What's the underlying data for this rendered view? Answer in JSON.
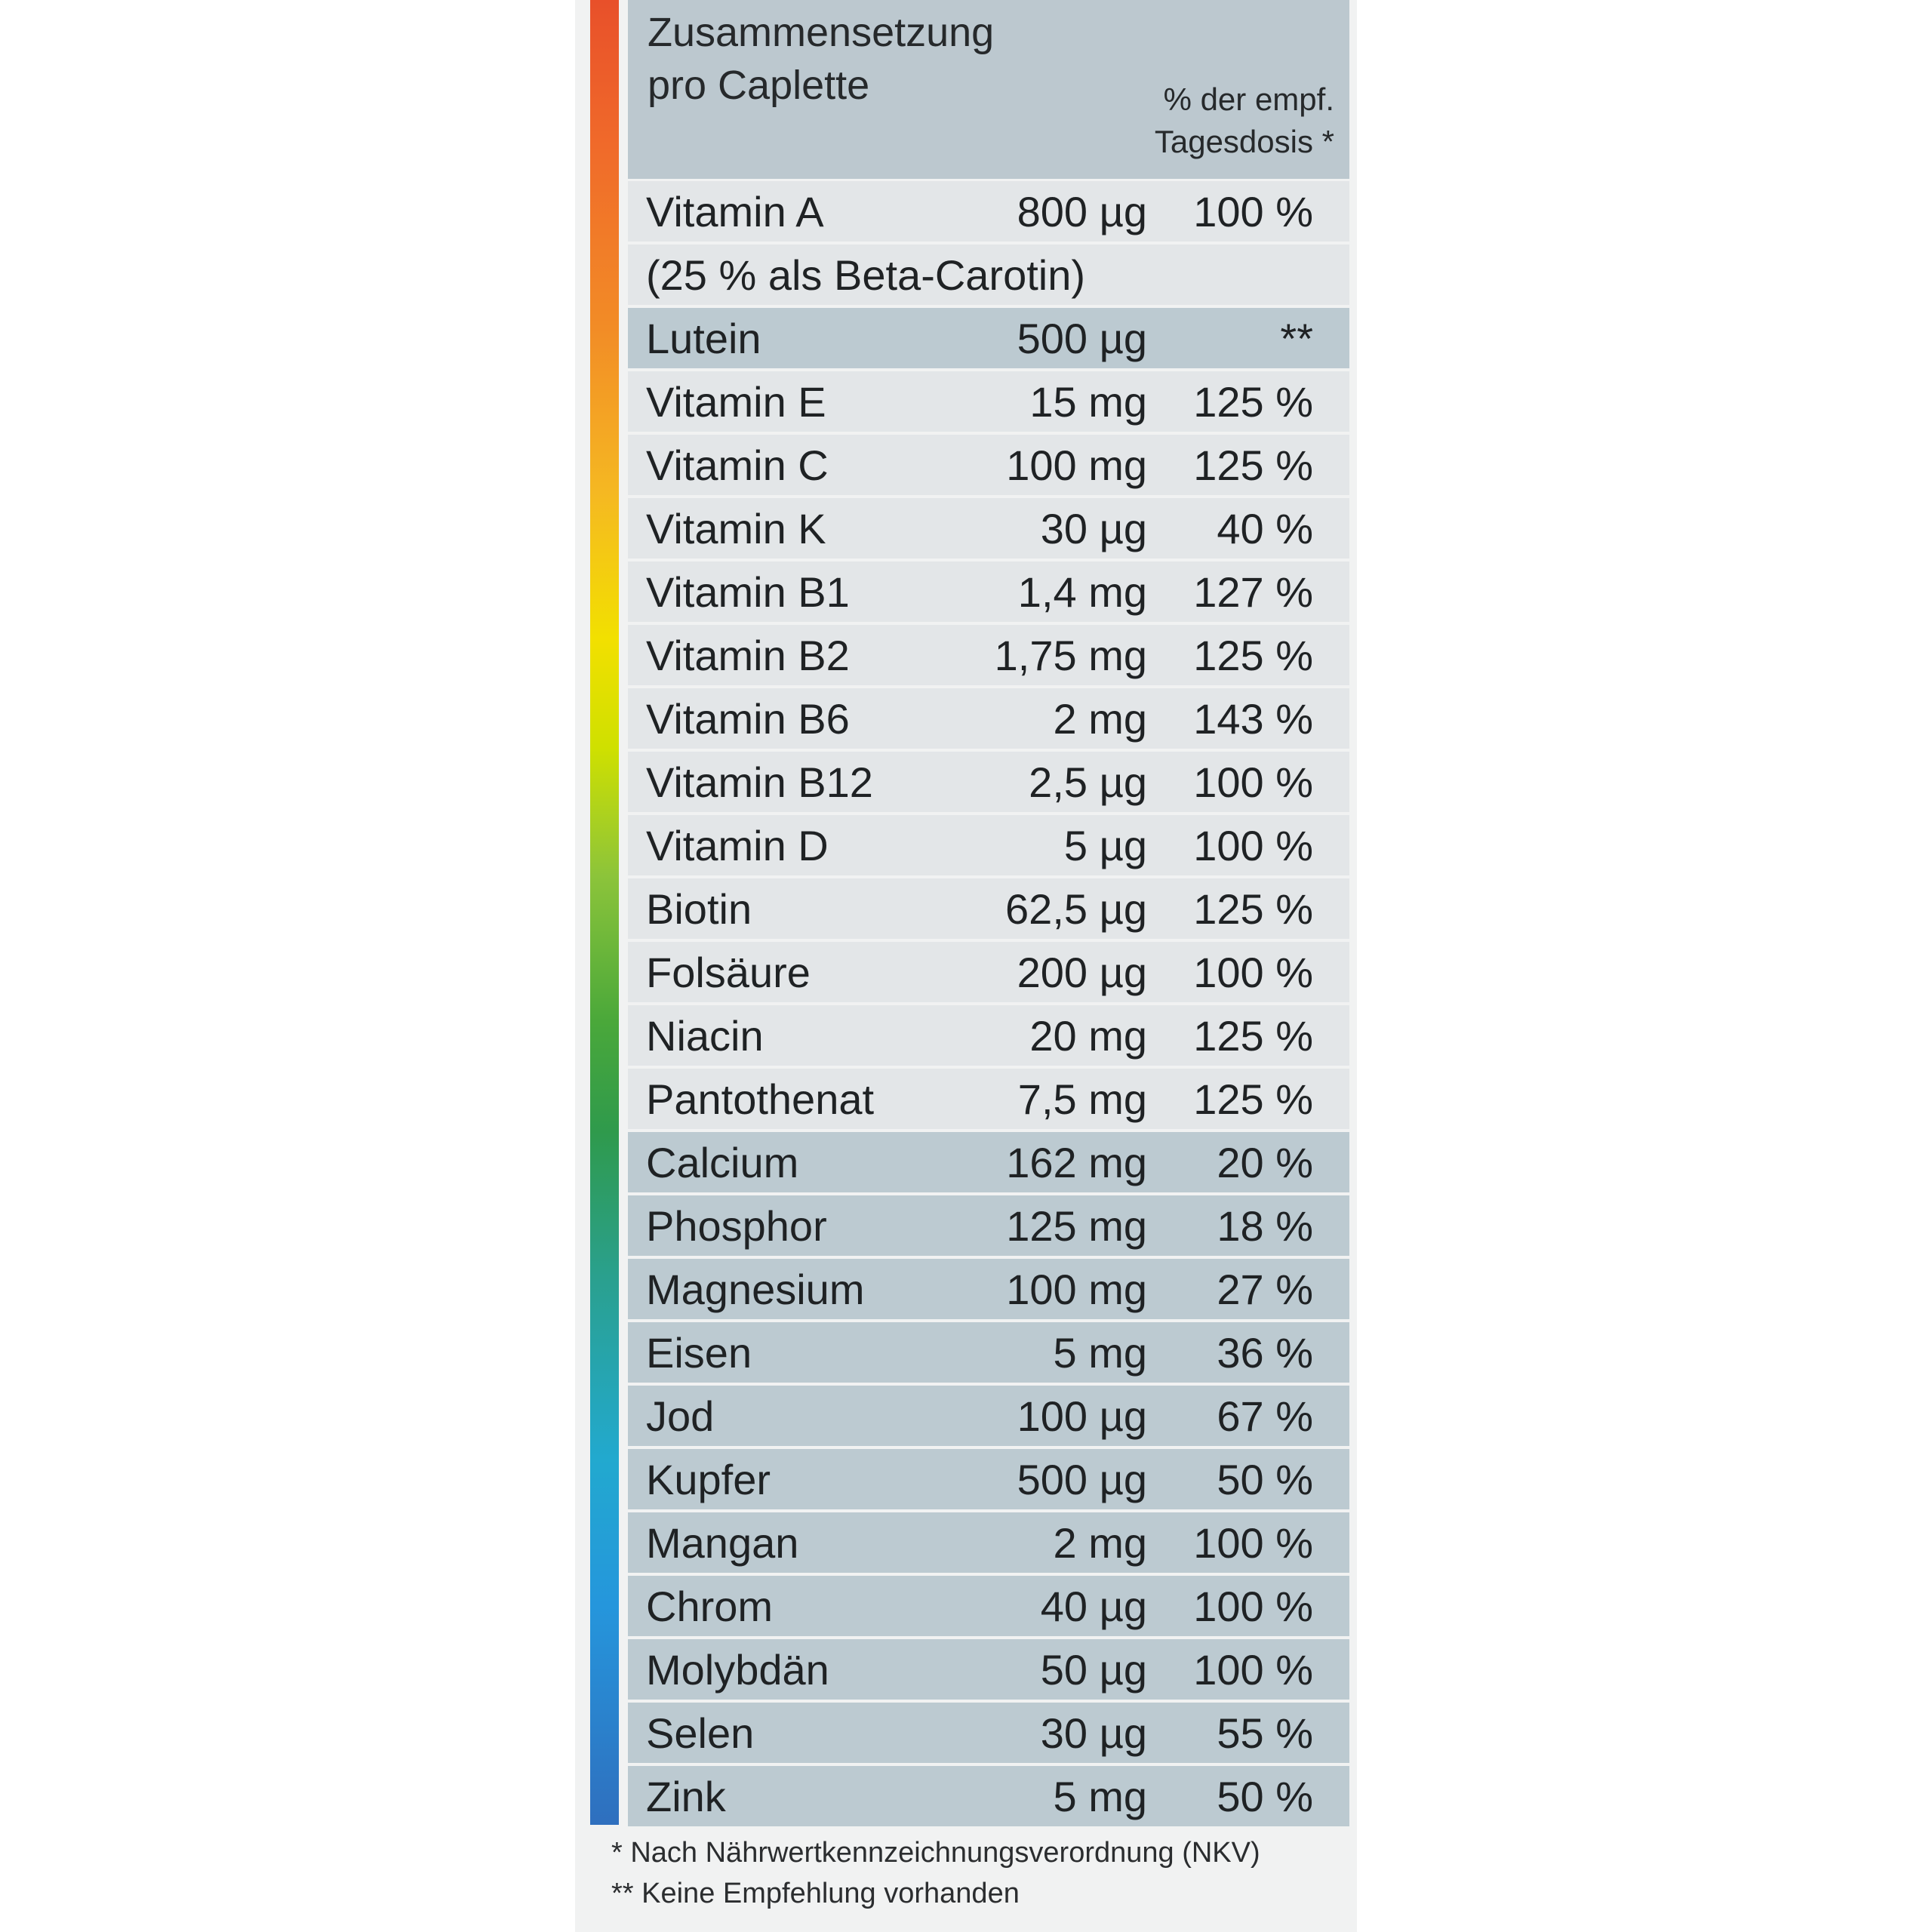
{
  "header": {
    "title_line1": "Zusammensetzung",
    "title_line2": "pro Caplette",
    "dv_line1": "% der empf.",
    "dv_line2": "Tagesdosis *"
  },
  "rows": [
    {
      "name": "Vitamin A",
      "amount": "800 µg",
      "dv": "100 %",
      "shade": "light"
    },
    {
      "name": "(25 % als Beta-Carotin)",
      "amount": "",
      "dv": "",
      "shade": "light"
    },
    {
      "name": "Lutein",
      "amount": "500 µg",
      "dv": "**",
      "shade": "dark"
    },
    {
      "name": "Vitamin E",
      "amount": "15 mg",
      "dv": "125 %",
      "shade": "light"
    },
    {
      "name": "Vitamin C",
      "amount": "100 mg",
      "dv": "125 %",
      "shade": "light"
    },
    {
      "name": "Vitamin K",
      "amount": "30 µg",
      "dv": "40 %",
      "shade": "light"
    },
    {
      "name": "Vitamin B1",
      "amount": "1,4 mg",
      "dv": "127 %",
      "shade": "light"
    },
    {
      "name": "Vitamin B2",
      "amount": "1,75 mg",
      "dv": "125 %",
      "shade": "light"
    },
    {
      "name": "Vitamin B6",
      "amount": "2 mg",
      "dv": "143 %",
      "shade": "light"
    },
    {
      "name": "Vitamin B12",
      "amount": "2,5 µg",
      "dv": "100 %",
      "shade": "light"
    },
    {
      "name": "Vitamin D",
      "amount": "5 µg",
      "dv": "100 %",
      "shade": "light"
    },
    {
      "name": "Biotin",
      "amount": "62,5 µg",
      "dv": "125 %",
      "shade": "light"
    },
    {
      "name": "Folsäure",
      "amount": "200 µg",
      "dv": "100 %",
      "shade": "light"
    },
    {
      "name": "Niacin",
      "amount": "20 mg",
      "dv": "125 %",
      "shade": "light"
    },
    {
      "name": "Pantothenat",
      "amount": "7,5 mg",
      "dv": "125 %",
      "shade": "light"
    },
    {
      "name": "Calcium",
      "amount": "162 mg",
      "dv": "20 %",
      "shade": "dark"
    },
    {
      "name": "Phosphor",
      "amount": "125 mg",
      "dv": "18 %",
      "shade": "dark"
    },
    {
      "name": "Magnesium",
      "amount": "100 mg",
      "dv": "27 %",
      "shade": "dark"
    },
    {
      "name": "Eisen",
      "amount": "5 mg",
      "dv": "36 %",
      "shade": "dark"
    },
    {
      "name": "Jod",
      "amount": "100 µg",
      "dv": "67 %",
      "shade": "dark"
    },
    {
      "name": "Kupfer",
      "amount": "500 µg",
      "dv": "50 %",
      "shade": "dark"
    },
    {
      "name": "Mangan",
      "amount": "2 mg",
      "dv": "100 %",
      "shade": "dark"
    },
    {
      "name": "Chrom",
      "amount": "40 µg",
      "dv": "100 %",
      "shade": "dark"
    },
    {
      "name": "Molybdän",
      "amount": "50 µg",
      "dv": "100 %",
      "shade": "dark"
    },
    {
      "name": "Selen",
      "amount": "30 µg",
      "dv": "55 %",
      "shade": "dark"
    },
    {
      "name": "Zink",
      "amount": "5 mg",
      "dv": "50 %",
      "shade": "dark"
    }
  ],
  "footnotes": {
    "note1": "* Nach Nährwertkennzeichnungsverordnung (NKV)",
    "note2": "** Keine Empfehlung vorhanden"
  },
  "colors": {
    "panel": "#f1f2f2",
    "header": "#bcc8cf",
    "row_light": "#e3e6e8",
    "row_dark": "#bccad1"
  }
}
